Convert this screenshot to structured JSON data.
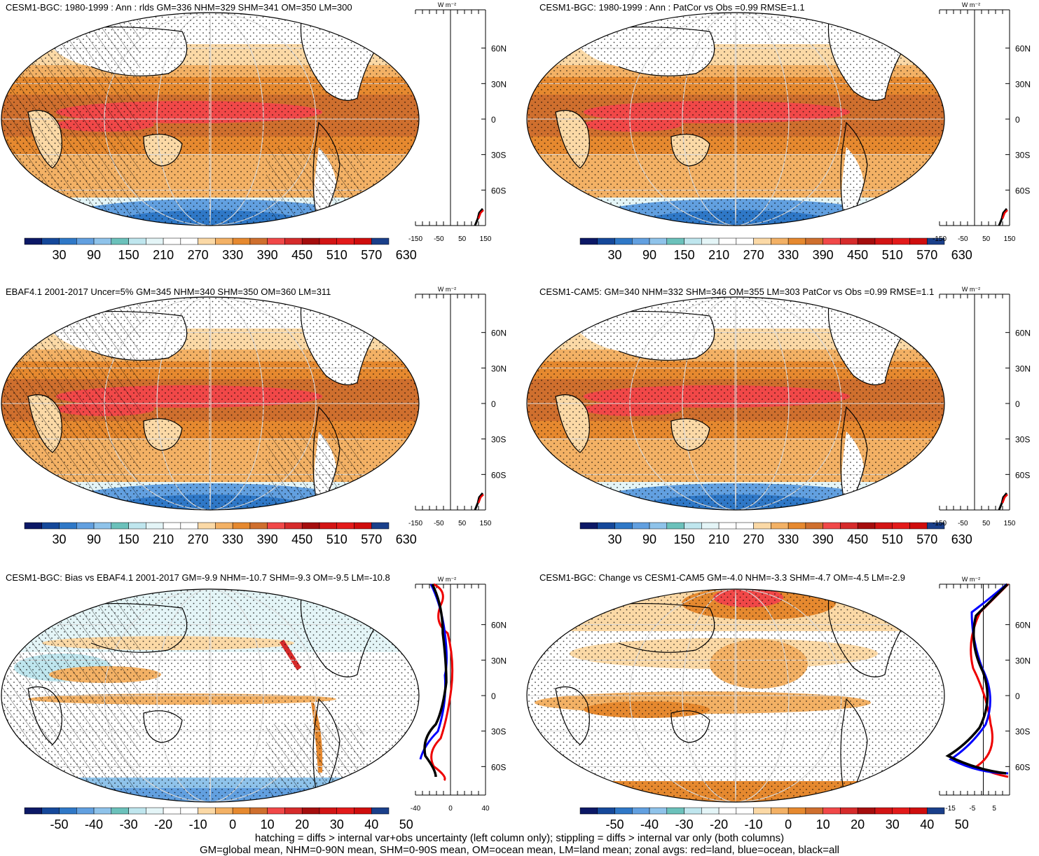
{
  "colors": {
    "fill": [
      "#0c1866",
      "#15489a",
      "#2f78c7",
      "#62a0e0",
      "#8fc3ea",
      "#6bc1bb",
      "#bfe6ee",
      "#e4f5f7",
      "#ffffff",
      "#ffffff",
      "#fbd9a6",
      "#f3b165",
      "#e6892f",
      "#cf6f2e",
      "#f14848",
      "#d62b2b",
      "#a50d0d",
      "#d31414",
      "#e31a1a",
      "#cf0d0d",
      "#1a3f8a"
    ],
    "land": "#ffffff",
    "outline": "#000000"
  },
  "panels": [
    {
      "id": "p1",
      "title": "CESM1-BGC: 1980-1999 : Ann : rlds GM=336 NHM=329 SHM=341 OM=350 LM=300",
      "kind": "abs",
      "hatch": true,
      "colorbar_ticks": [
        "30",
        "90",
        "150",
        "210",
        "270",
        "330",
        "390",
        "450",
        "510",
        "570",
        "630"
      ],
      "zonal": {
        "unit": "W m⁻²",
        "xticks": [
          "-150",
          "-50",
          "50",
          "150"
        ],
        "xlim": [
          -150,
          150
        ]
      }
    },
    {
      "id": "p2",
      "title": "CESM1-BGC: 1980-1999 : Ann : PatCor vs Obs =0.99 RMSE=1.1",
      "kind": "abs",
      "hatch": false,
      "colorbar_ticks": [
        "30",
        "90",
        "150",
        "210",
        "270",
        "330",
        "390",
        "450",
        "510",
        "570",
        "630"
      ],
      "zonal": {
        "unit": "W m⁻²",
        "xticks": [
          "-150",
          "-50",
          "50",
          "150"
        ],
        "xlim": [
          -150,
          150
        ]
      }
    },
    {
      "id": "p3",
      "title": "EBAF4.1 2001-2017 Uncer=5% GM=345 NHM=340 SHM=350 OM=360 LM=311",
      "kind": "abs",
      "hatch": true,
      "colorbar_ticks": [
        "30",
        "90",
        "150",
        "210",
        "270",
        "330",
        "390",
        "450",
        "510",
        "570",
        "630"
      ],
      "zonal": {
        "unit": "W m⁻²",
        "xticks": [
          "-150",
          "-50",
          "50",
          "150"
        ],
        "xlim": [
          -150,
          150
        ]
      }
    },
    {
      "id": "p4",
      "title": "CESM1-CAM5: GM=340 NHM=332 SHM=346 OM=355 LM=303 PatCor vs Obs =0.99 RMSE=1.1",
      "kind": "abs",
      "hatch": false,
      "colorbar_ticks": [
        "30",
        "90",
        "150",
        "210",
        "270",
        "330",
        "390",
        "450",
        "510",
        "570",
        "630"
      ],
      "zonal": {
        "unit": "W m⁻²",
        "xticks": [
          "-150",
          "-50",
          "50",
          "150"
        ],
        "xlim": [
          -150,
          150
        ]
      }
    },
    {
      "id": "p5",
      "title": "CESM1-BGC: Bias vs EBAF4.1 2001-2017 GM=-9.9 NHM=-10.7 SHM=-9.3 OM=-9.5 LM=-10.8",
      "kind": "diff",
      "hatch": true,
      "colorbar_ticks": [
        "-50",
        "-40",
        "-30",
        "-20",
        "-10",
        "0",
        "10",
        "20",
        "30",
        "40",
        "50"
      ],
      "zonal": {
        "unit": "W m⁻²",
        "xticks": [
          "-40",
          "0",
          "40"
        ],
        "xlim": [
          -40,
          40
        ]
      }
    },
    {
      "id": "p6",
      "title": "CESM1-BGC: Change vs CESM1-CAM5 GM=-4.0 NHM=-3.3 SHM=-4.7 OM=-4.5 LM=-2.9",
      "kind": "diff",
      "hatch": false,
      "colorbar_ticks": [
        "-50",
        "-40",
        "-30",
        "-20",
        "-10",
        "0",
        "10",
        "20",
        "30",
        "40",
        "50"
      ],
      "zonal": {
        "unit": "W m⁻²",
        "xticks": [
          "-15",
          "-5",
          "5"
        ],
        "xlim": [
          -20,
          12
        ]
      }
    }
  ],
  "lat_labels": [
    "60N",
    "30N",
    "0",
    "30S",
    "60S"
  ],
  "footer": {
    "line1": "hatching = diffs > internal var+obs uncertainty (left column only); stippling = diffs > internal var only (both columns)",
    "line2": "GM=global mean, NHM=0-90N mean, SHM=0-90S mean, OM=ocean mean, LM=land mean; zonal avgs: red=land, blue=ocean, black=all"
  }
}
